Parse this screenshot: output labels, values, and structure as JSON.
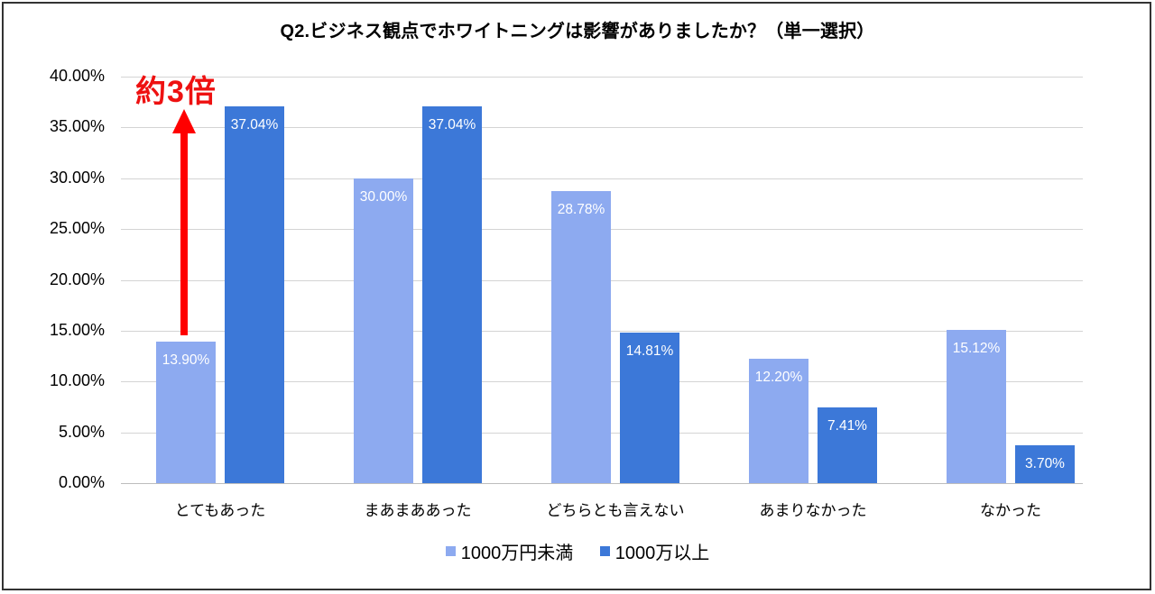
{
  "chart_data": {
    "type": "bar",
    "title": "Q2.ビジネス観点でホワイトニングは影響がありましたか？（単一選択）",
    "xlabel": "",
    "ylabel": "",
    "ylim": [
      0,
      40
    ],
    "yticks": [
      "0.00%",
      "5.00%",
      "10.00%",
      "15.00%",
      "20.00%",
      "25.00%",
      "30.00%",
      "35.00%",
      "40.00%"
    ],
    "grid": true,
    "legend_position": "bottom",
    "categories": [
      "とてもあった",
      "まあまああった",
      "どちらとも言えない",
      "あまりなかった",
      "なかった"
    ],
    "series": [
      {
        "name": "1000万円未満",
        "color": "#8daaf0",
        "values": [
          13.9,
          30.0,
          28.78,
          12.2,
          15.12
        ],
        "labels": [
          "13.90%",
          "30.00%",
          "28.78%",
          "12.20%",
          "15.12%"
        ]
      },
      {
        "name": "1000万以上",
        "color": "#3c78d8",
        "values": [
          37.04,
          37.04,
          14.81,
          7.41,
          3.7
        ],
        "labels": [
          "37.04%",
          "37.04%",
          "14.81%",
          "7.41%",
          "3.70%"
        ]
      }
    ],
    "annotations": [
      {
        "text": "約3倍",
        "color": "#ee1111",
        "type": "arrow-up",
        "category": "とてもあった"
      }
    ]
  }
}
